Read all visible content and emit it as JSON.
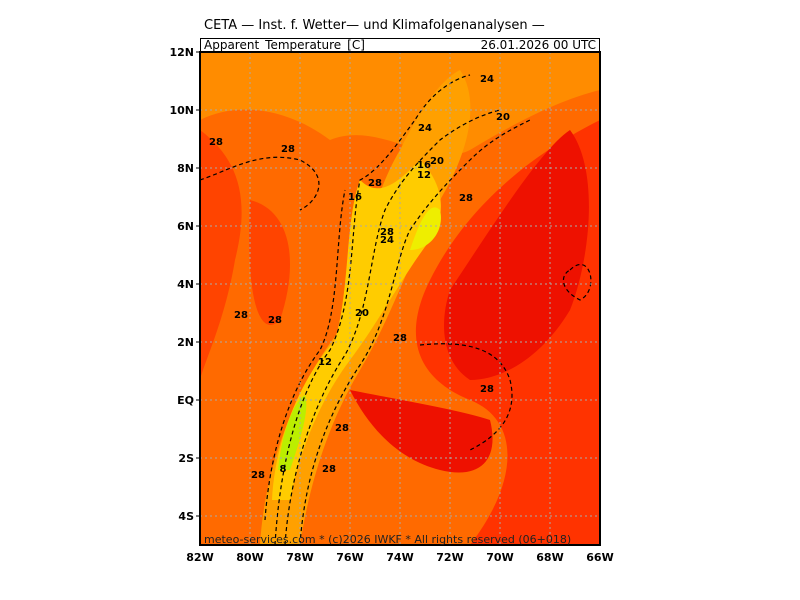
{
  "header": {
    "title": "CETA — Inst. f. Wetter— und Klimafolgenanalysen —",
    "variable": "Apparent_Temperature_[C]",
    "datetime": "26.01.2026  00  UTC"
  },
  "footer": "meteo-services.com * (c)2026 IWKF * All rights reserved (06+018)",
  "map": {
    "lon_range": [
      -82,
      -66
    ],
    "lat_range": [
      -5,
      12
    ],
    "lat_labels": [
      "12N",
      "10N",
      "8N",
      "6N",
      "4N",
      "2N",
      "EQ",
      "2S",
      "4S"
    ],
    "lon_labels": [
      "82W",
      "80W",
      "78W",
      "76W",
      "74W",
      "72W",
      "70W",
      "68W",
      "66W"
    ],
    "colors": {
      "warm": "#ff8800",
      "hot": "#ff4400",
      "hottest": "#ee0000",
      "mild": "#ffaa00",
      "cool": "#ffdd00",
      "cold": "#ccff00"
    },
    "contour_labels": [
      {
        "v": "28",
        "lon": -81.36,
        "lat": 8.93
      },
      {
        "v": "28",
        "lon": -78.48,
        "lat": 8.69
      },
      {
        "v": "24",
        "lon": -70.52,
        "lat": 11.1
      },
      {
        "v": "24",
        "lon": -73.0,
        "lat": 9.41
      },
      {
        "v": "20",
        "lon": -69.88,
        "lat": 9.79
      },
      {
        "v": "16",
        "lon": -73.04,
        "lat": 8.14
      },
      {
        "v": "12",
        "lon": -73.04,
        "lat": 7.79
      },
      {
        "v": "20",
        "lon": -72.52,
        "lat": 8.28
      },
      {
        "v": "28",
        "lon": -75.0,
        "lat": 7.52
      },
      {
        "v": "16",
        "lon": -75.8,
        "lat": 7.03
      },
      {
        "v": "28",
        "lon": -71.36,
        "lat": 7.0
      },
      {
        "v": "28",
        "lon": -74.52,
        "lat": 5.83
      },
      {
        "v": "24",
        "lon": -74.52,
        "lat": 5.55
      },
      {
        "v": "20",
        "lon": -75.52,
        "lat": 3.03
      },
      {
        "v": "28",
        "lon": -80.36,
        "lat": 2.97
      },
      {
        "v": "28",
        "lon": -79.0,
        "lat": 2.79
      },
      {
        "v": "28",
        "lon": -74.0,
        "lat": 2.17
      },
      {
        "v": "12",
        "lon": -77.0,
        "lat": 1.34
      },
      {
        "v": "28",
        "lon": -70.52,
        "lat": 0.41
      },
      {
        "v": "28",
        "lon": -76.32,
        "lat": -0.93
      },
      {
        "v": "28",
        "lon": -76.84,
        "lat": -2.34
      },
      {
        "v": "28",
        "lon": -79.68,
        "lat": -2.55
      },
      {
        "v": "8",
        "lon": -78.68,
        "lat": -2.34
      }
    ]
  }
}
